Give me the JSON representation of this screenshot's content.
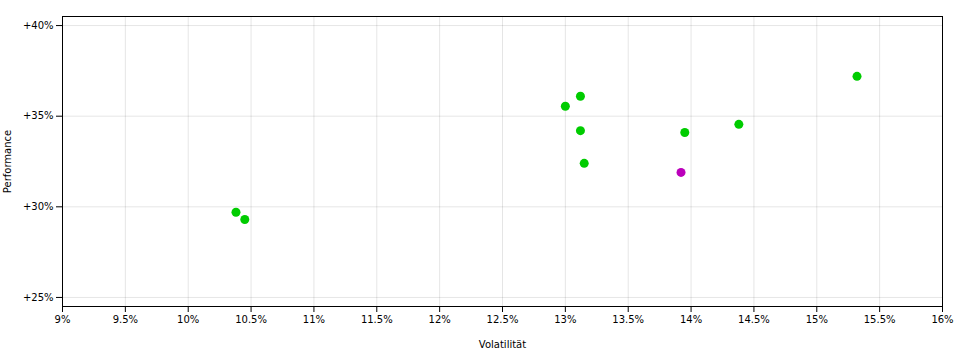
{
  "chart_data": {
    "type": "scatter",
    "xlabel": "Volatilität",
    "ylabel": "Performance",
    "series": [
      {
        "color": "#00cc00",
        "x": [
          10.38,
          10.45,
          13.0,
          13.12,
          13.12,
          13.15,
          13.95,
          14.38,
          15.32
        ],
        "values": [
          29.7,
          29.3,
          35.55,
          36.1,
          34.2,
          32.4,
          34.1,
          34.55,
          37.2
        ]
      },
      {
        "color": "#bb00bb",
        "x": [
          13.92
        ],
        "values": [
          31.9
        ]
      }
    ],
    "xlim": [
      9.0,
      16.0
    ],
    "ylim": [
      24.5,
      40.5
    ],
    "xticks": [
      {
        "value": 9.0,
        "label": "9%"
      },
      {
        "value": 9.5,
        "label": "9.5%"
      },
      {
        "value": 10.0,
        "label": "10%"
      },
      {
        "value": 10.5,
        "label": "10.5%"
      },
      {
        "value": 11.0,
        "label": "11%"
      },
      {
        "value": 11.5,
        "label": "11.5%"
      },
      {
        "value": 12.0,
        "label": "12%"
      },
      {
        "value": 12.5,
        "label": "12.5%"
      },
      {
        "value": 13.0,
        "label": "13%"
      },
      {
        "value": 13.5,
        "label": "13.5%"
      },
      {
        "value": 14.0,
        "label": "14%"
      },
      {
        "value": 14.5,
        "label": "14.5%"
      },
      {
        "value": 15.0,
        "label": "15%"
      },
      {
        "value": 15.5,
        "label": "15.5%"
      },
      {
        "value": 16.0,
        "label": "16%"
      }
    ],
    "yticks": [
      {
        "value": 25.0,
        "label": "+25%"
      },
      {
        "value": 30.0,
        "label": "+30%"
      },
      {
        "value": 35.0,
        "label": "+35%"
      },
      {
        "value": 40.0,
        "label": "+40%"
      }
    ],
    "grid": true
  }
}
